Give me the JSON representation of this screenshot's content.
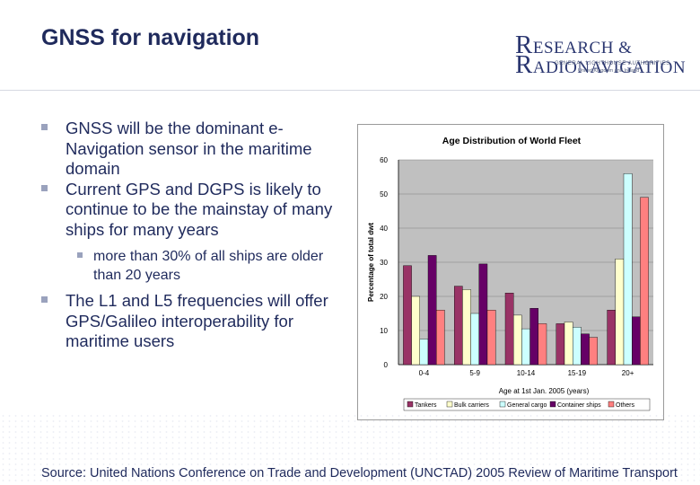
{
  "slide": {
    "title": "GNSS for navigation",
    "logo": {
      "line1": "ESEARCH &",
      "line1_initial": "R",
      "line2": "ADIONAVIGATION",
      "line2_initial": "R",
      "line3": "GENERAL LIGHTHOUSE AUTHORITIES",
      "line4": "United Kingdom and Ireland"
    },
    "bullets": [
      "GNSS will be the dominant e-Navigation sensor in the maritime domain",
      "Current GPS and DGPS is likely to continue to be the mainstay of many ships for many years"
    ],
    "sub_bullet": "more than 30% of all ships are older than 20 years",
    "bullets_after": [
      "The L1 and L5 frequencies will offer GPS/Galileo interoperability for maritime users"
    ],
    "source": "Source: United Nations Conference on Trade and Development (UNCTAD) 2005 Review of Maritime Transport"
  },
  "chart_data": {
    "type": "bar",
    "title": "Age Distribution of World Fleet",
    "xlabel": "Age at 1st Jan. 2005 (years)",
    "ylabel": "Percentage of total dwt",
    "ylim": [
      0,
      60
    ],
    "yticks": [
      0,
      10,
      20,
      30,
      40,
      50,
      60
    ],
    "grid": true,
    "legend_position": "bottom",
    "categories": [
      "0-4",
      "5-9",
      "10-14",
      "15-19",
      "20+"
    ],
    "series": [
      {
        "name": "Tankers",
        "color": "#993366",
        "values": [
          29,
          23,
          21,
          12,
          16
        ]
      },
      {
        "name": "Bulk carriers",
        "color": "#ffffcc",
        "values": [
          20,
          22,
          14.5,
          12.5,
          31
        ]
      },
      {
        "name": "General cargo",
        "color": "#ccffff",
        "values": [
          7.5,
          15,
          10.5,
          11,
          56
        ]
      },
      {
        "name": "Container ships",
        "color": "#660066",
        "values": [
          32,
          29.5,
          16.5,
          9,
          14
        ]
      },
      {
        "name": "Others",
        "color": "#ff8080",
        "values": [
          16,
          16,
          12,
          8,
          49
        ]
      }
    ]
  }
}
